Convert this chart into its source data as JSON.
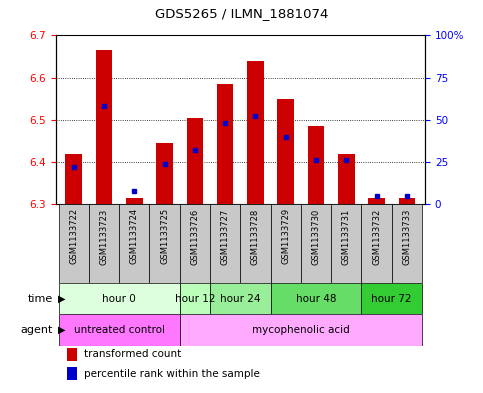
{
  "title": "GDS5265 / ILMN_1881074",
  "samples": [
    "GSM1133722",
    "GSM1133723",
    "GSM1133724",
    "GSM1133725",
    "GSM1133726",
    "GSM1133727",
    "GSM1133728",
    "GSM1133729",
    "GSM1133730",
    "GSM1133731",
    "GSM1133732",
    "GSM1133733"
  ],
  "transformed_counts": [
    6.42,
    6.665,
    6.315,
    6.445,
    6.505,
    6.585,
    6.64,
    6.55,
    6.485,
    6.42,
    6.315,
    6.315
  ],
  "percentile_ranks": [
    22,
    58,
    8,
    24,
    32,
    48,
    52,
    40,
    26,
    26,
    5,
    5
  ],
  "ylim_left": [
    6.3,
    6.7
  ],
  "ylim_right": [
    0,
    100
  ],
  "yticks_left": [
    6.3,
    6.4,
    6.5,
    6.6,
    6.7
  ],
  "yticks_right": [
    0,
    25,
    50,
    75,
    100
  ],
  "bar_color": "#cc0000",
  "dot_color": "#0000cc",
  "bar_bottom": 6.3,
  "time_groups": [
    {
      "label": "hour 0",
      "start": 0,
      "end": 3,
      "color": "#ddffdd"
    },
    {
      "label": "hour 12",
      "start": 4,
      "end": 4,
      "color": "#bbffbb"
    },
    {
      "label": "hour 24",
      "start": 5,
      "end": 6,
      "color": "#99ee99"
    },
    {
      "label": "hour 48",
      "start": 7,
      "end": 9,
      "color": "#66dd66"
    },
    {
      "label": "hour 72",
      "start": 10,
      "end": 11,
      "color": "#33cc33"
    }
  ],
  "agent_groups": [
    {
      "label": "untreated control",
      "start": 0,
      "end": 3,
      "color": "#ff77ff"
    },
    {
      "label": "mycophenolic acid",
      "start": 4,
      "end": 11,
      "color": "#ffaaff"
    }
  ],
  "bar_width": 0.55,
  "sample_bg_color": "#c8c8c8"
}
